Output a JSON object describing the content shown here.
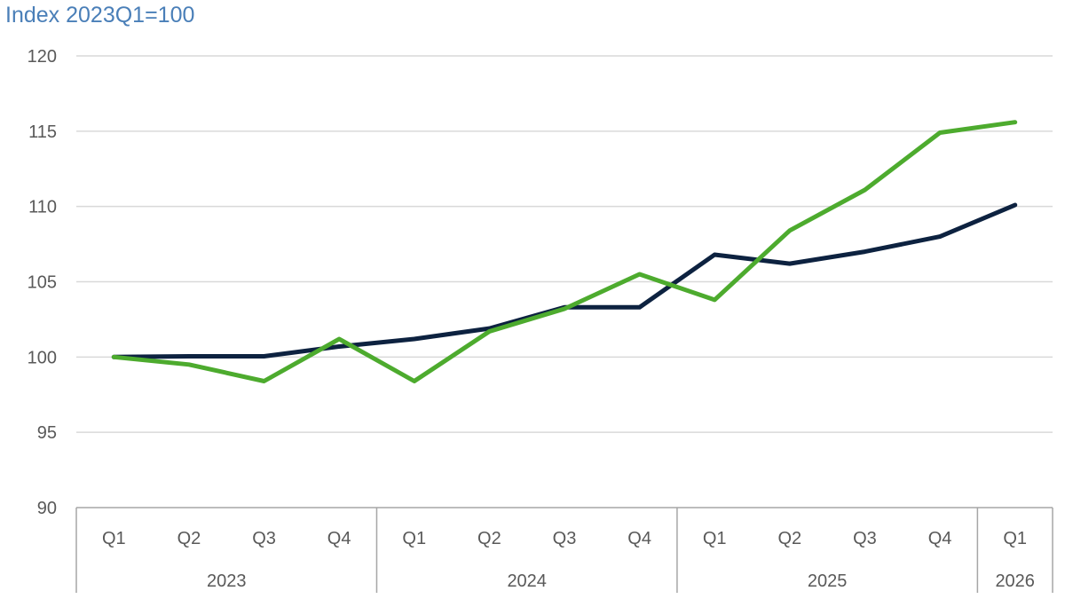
{
  "chart_data": {
    "type": "line",
    "title": "Index 2023Q1=100",
    "ylim": [
      90,
      120
    ],
    "yticks": [
      "90",
      "95",
      "100",
      "105",
      "110",
      "115",
      "120"
    ],
    "grid": true,
    "categories": [
      "Q1",
      "Q2",
      "Q3",
      "Q4",
      "Q1",
      "Q2",
      "Q3",
      "Q4",
      "Q1",
      "Q2",
      "Q3",
      "Q4",
      "Q1"
    ],
    "year_groups": [
      {
        "label": "2023",
        "count": 4
      },
      {
        "label": "2024",
        "count": 4
      },
      {
        "label": "2025",
        "count": 4
      },
      {
        "label": "2026",
        "count": 1
      }
    ],
    "series": [
      {
        "color": "#0d2240",
        "values": [
          100.0,
          100.05,
          100.05,
          100.7,
          101.2,
          101.9,
          103.3,
          103.3,
          106.8,
          106.2,
          107.0,
          108.0,
          110.1
        ]
      },
      {
        "color": "#4dab2e",
        "values": [
          100.0,
          99.5,
          98.4,
          101.2,
          98.4,
          101.7,
          103.2,
          105.5,
          103.8,
          108.4,
          111.1,
          114.9,
          115.6
        ]
      }
    ]
  }
}
